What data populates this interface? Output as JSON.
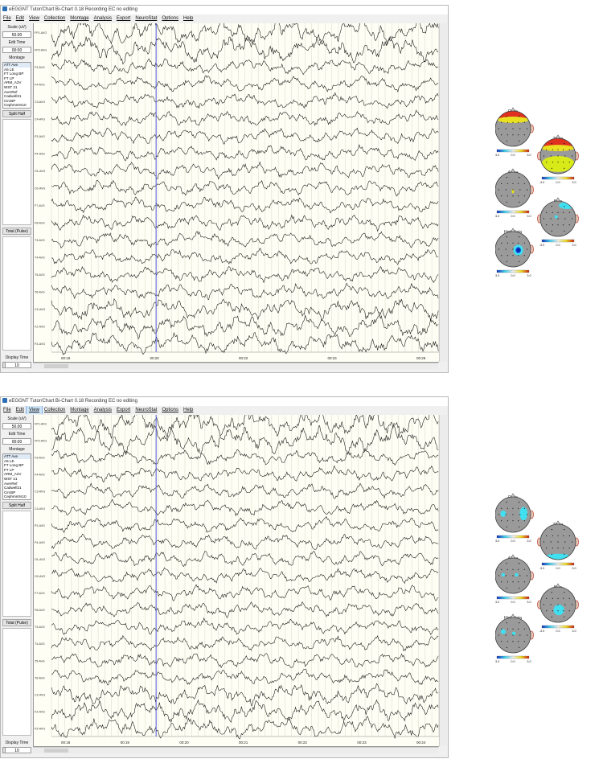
{
  "colors": {
    "background": "#fefef4",
    "grid": "#d8d8c8",
    "trace": "#111111",
    "cursor": "#4a55d8",
    "selected_menu": "#cde4f7"
  },
  "windows": [
    {
      "title": "eEGGNT Tutor/Chart Bi-Chart 0.18 Recording EC no editing",
      "menu": [
        "File",
        "Edit",
        "View",
        "Collection",
        "Montage",
        "Analysis",
        "Export",
        "NeuroStat",
        "Options",
        "Help"
      ],
      "active_menu": -1,
      "scale_label": "Scale (uV)",
      "scale_value": "50.00",
      "edit_time_label": "Edit Time",
      "edit_time_value": "00:00",
      "montage_label": "Montage",
      "montage_items": [
        "ATT Ave",
        "A5 LE",
        "FT Long BP",
        "FT LP",
        "ARM_A2V",
        "WST 21",
        "AverRef",
        "Cadwell21",
        "CircBP",
        "Cephmntrs10"
      ],
      "split_half_button": "Split Half",
      "total_pulse_button": "Total (Pulse)",
      "display_time_label": "Display Time",
      "display_time_value": "10",
      "channels": [
        "FP1-AVG",
        "FP2-AVG",
        "F3-AVG",
        "F4-AVG",
        "C3-AVG",
        "C4-AVG",
        "P3-AVG",
        "P4-AVG",
        "O1-AVG",
        "O2-AVG",
        "F7-AVG",
        "F8-AVG",
        "T3-AVG",
        "T4-AVG",
        "T5-AVG",
        "T6-AVG",
        "CZ-AVG",
        "FZ-AVG",
        "PZ-AVG"
      ],
      "time_ticks": [
        "00:18",
        "00:20",
        "00:22",
        "00:24",
        "00:26"
      ],
      "brain_maps": [
        {
          "label": "Delta",
          "scale": [
            "-3.0",
            "0.0",
            "3.0"
          ],
          "pattern": "delta1"
        },
        {
          "label": "Theta",
          "scale": [
            "-3.0",
            "0.0",
            "3.0"
          ],
          "pattern": "theta1"
        },
        {
          "label": "Alpha",
          "scale": [
            "-3.0",
            "0.0",
            "3.0"
          ],
          "pattern": "alpha1"
        },
        {
          "label": "Beta",
          "scale": [
            "-3.0",
            "0.0",
            "3.0"
          ],
          "pattern": "beta1"
        },
        {
          "label": "High Beta",
          "scale": [
            "-3.0",
            "0.0",
            "3.0"
          ],
          "pattern": "hbeta1"
        }
      ]
    },
    {
      "title": "eEGGNT Tutor/Chart Bi-Chart 0.18 Recording EC no editing",
      "menu": [
        "File",
        "Edit",
        "View",
        "Collection",
        "Montage",
        "Analysis",
        "Export",
        "NeuroStat",
        "Options",
        "Help"
      ],
      "active_menu": 2,
      "scale_label": "Scale (uV)",
      "scale_value": "50.00",
      "edit_time_label": "Edit Time",
      "edit_time_value": "00:00",
      "montage_label": "Montage",
      "montage_items": [
        "ATT Ave",
        "A5 LE",
        "FT Long BP",
        "FT LP",
        "ARM_A2V",
        "WST 21",
        "AverRef",
        "Cadwell21",
        "CircBP",
        "Cephmntrs10"
      ],
      "split_half_button": "Split Half",
      "total_pulse_button": "Total (Pulse)",
      "display_time_label": "Display Time",
      "display_time_value": "10",
      "channels": [
        "FP1-AVG",
        "FP2-AVG",
        "F3-AVG",
        "F4-AVG",
        "C3-AVG",
        "C4-AVG",
        "P3-AVG",
        "P4-AVG",
        "O1-AVG",
        "O2-AVG",
        "F7-AVG",
        "F8-AVG",
        "T3-AVG",
        "T4-AVG",
        "T5-AVG",
        "T6-AVG",
        "CZ-AVG",
        "FZ-AVG",
        "PZ-AVG"
      ],
      "time_ticks": [
        "00:18",
        "00:19",
        "00:20",
        "00:21",
        "00:22",
        "00:23",
        "00:24"
      ],
      "brain_maps": [
        {
          "label": "Delta",
          "scale": [
            "-3.0",
            "0.0",
            "3.0"
          ],
          "pattern": "delta2"
        },
        {
          "label": "Theta",
          "scale": [
            "-3.0",
            "0.0",
            "3.0"
          ],
          "pattern": "theta2"
        },
        {
          "label": "Alpha",
          "scale": [
            "-3.0",
            "0.0",
            "3.0"
          ],
          "pattern": "alpha2"
        },
        {
          "label": "Beta",
          "scale": [
            "-3.0",
            "0.0",
            "3.0"
          ],
          "pattern": "beta2"
        },
        {
          "label": "High Beta",
          "scale": [
            "-3.0",
            "0.0",
            "3.0"
          ],
          "pattern": "hbeta2"
        }
      ]
    }
  ]
}
